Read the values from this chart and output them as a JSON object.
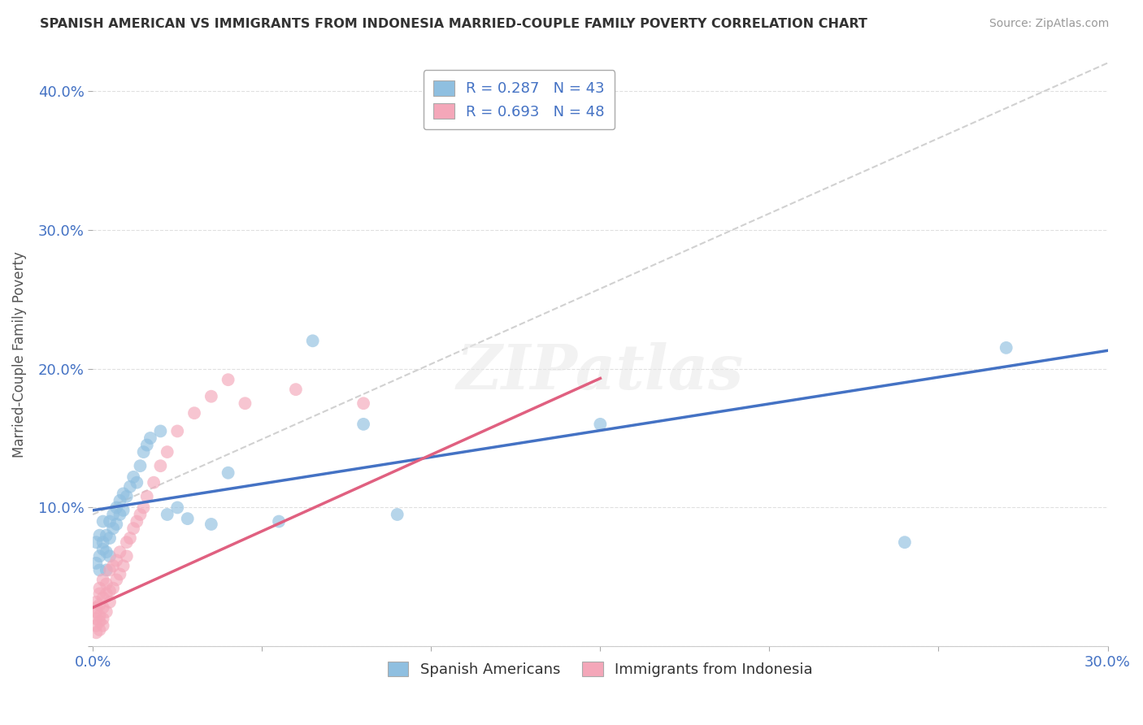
{
  "title": "SPANISH AMERICAN VS IMMIGRANTS FROM INDONESIA MARRIED-COUPLE FAMILY POVERTY CORRELATION CHART",
  "source": "Source: ZipAtlas.com",
  "xlabel": "",
  "ylabel": "Married-Couple Family Poverty",
  "xlim": [
    0.0,
    0.3
  ],
  "ylim": [
    0.0,
    0.42
  ],
  "xticks": [
    0.0,
    0.05,
    0.1,
    0.15,
    0.2,
    0.25,
    0.3
  ],
  "xtick_labels": [
    "0.0%",
    "",
    "",
    "",
    "",
    "",
    "30.0%"
  ],
  "yticks": [
    0.0,
    0.1,
    0.2,
    0.3,
    0.4
  ],
  "ytick_labels": [
    "",
    "10.0%",
    "20.0%",
    "30.0%",
    "40.0%"
  ],
  "blue_color": "#8fbfe0",
  "pink_color": "#f4a7b9",
  "blue_line_color": "#4472c4",
  "pink_line_color": "#e06080",
  "blue_R": 0.287,
  "blue_N": 43,
  "pink_R": 0.693,
  "pink_N": 48,
  "blue_line_x0": 0.0,
  "blue_line_y0": 0.098,
  "blue_line_x1": 0.3,
  "blue_line_y1": 0.213,
  "pink_line_x0": 0.0,
  "pink_line_y0": 0.028,
  "pink_line_x1": 0.15,
  "pink_line_y1": 0.193,
  "dash_line_x0": 0.0,
  "dash_line_y0": 0.095,
  "dash_line_x1": 0.3,
  "dash_line_y1": 0.42,
  "blue_scatter_x": [
    0.001,
    0.001,
    0.002,
    0.002,
    0.002,
    0.003,
    0.003,
    0.003,
    0.004,
    0.004,
    0.004,
    0.005,
    0.005,
    0.005,
    0.006,
    0.006,
    0.007,
    0.007,
    0.008,
    0.008,
    0.009,
    0.009,
    0.01,
    0.011,
    0.012,
    0.013,
    0.014,
    0.015,
    0.016,
    0.017,
    0.02,
    0.022,
    0.025,
    0.028,
    0.035,
    0.04,
    0.055,
    0.065,
    0.08,
    0.09,
    0.15,
    0.24,
    0.27
  ],
  "blue_scatter_y": [
    0.075,
    0.06,
    0.08,
    0.065,
    0.055,
    0.075,
    0.09,
    0.07,
    0.08,
    0.068,
    0.055,
    0.09,
    0.078,
    0.065,
    0.095,
    0.085,
    0.1,
    0.088,
    0.105,
    0.095,
    0.11,
    0.098,
    0.108,
    0.115,
    0.122,
    0.118,
    0.13,
    0.14,
    0.145,
    0.15,
    0.155,
    0.095,
    0.1,
    0.092,
    0.088,
    0.125,
    0.09,
    0.22,
    0.16,
    0.095,
    0.16,
    0.075,
    0.215
  ],
  "pink_scatter_x": [
    0.001,
    0.001,
    0.001,
    0.001,
    0.001,
    0.001,
    0.002,
    0.002,
    0.002,
    0.002,
    0.002,
    0.002,
    0.003,
    0.003,
    0.003,
    0.003,
    0.003,
    0.004,
    0.004,
    0.004,
    0.005,
    0.005,
    0.005,
    0.006,
    0.006,
    0.007,
    0.007,
    0.008,
    0.008,
    0.009,
    0.01,
    0.01,
    0.011,
    0.012,
    0.013,
    0.014,
    0.015,
    0.016,
    0.018,
    0.02,
    0.022,
    0.025,
    0.03,
    0.035,
    0.04,
    0.045,
    0.06,
    0.08
  ],
  "pink_scatter_y": [
    0.01,
    0.015,
    0.02,
    0.025,
    0.028,
    0.032,
    0.012,
    0.018,
    0.022,
    0.03,
    0.038,
    0.042,
    0.015,
    0.02,
    0.028,
    0.035,
    0.048,
    0.025,
    0.038,
    0.045,
    0.032,
    0.04,
    0.055,
    0.042,
    0.058,
    0.048,
    0.062,
    0.052,
    0.068,
    0.058,
    0.065,
    0.075,
    0.078,
    0.085,
    0.09,
    0.095,
    0.1,
    0.108,
    0.118,
    0.13,
    0.14,
    0.155,
    0.168,
    0.18,
    0.192,
    0.175,
    0.185,
    0.175
  ],
  "watermark": "ZIPatlas",
  "background_color": "#ffffff",
  "grid_color": "#e0e0e0"
}
